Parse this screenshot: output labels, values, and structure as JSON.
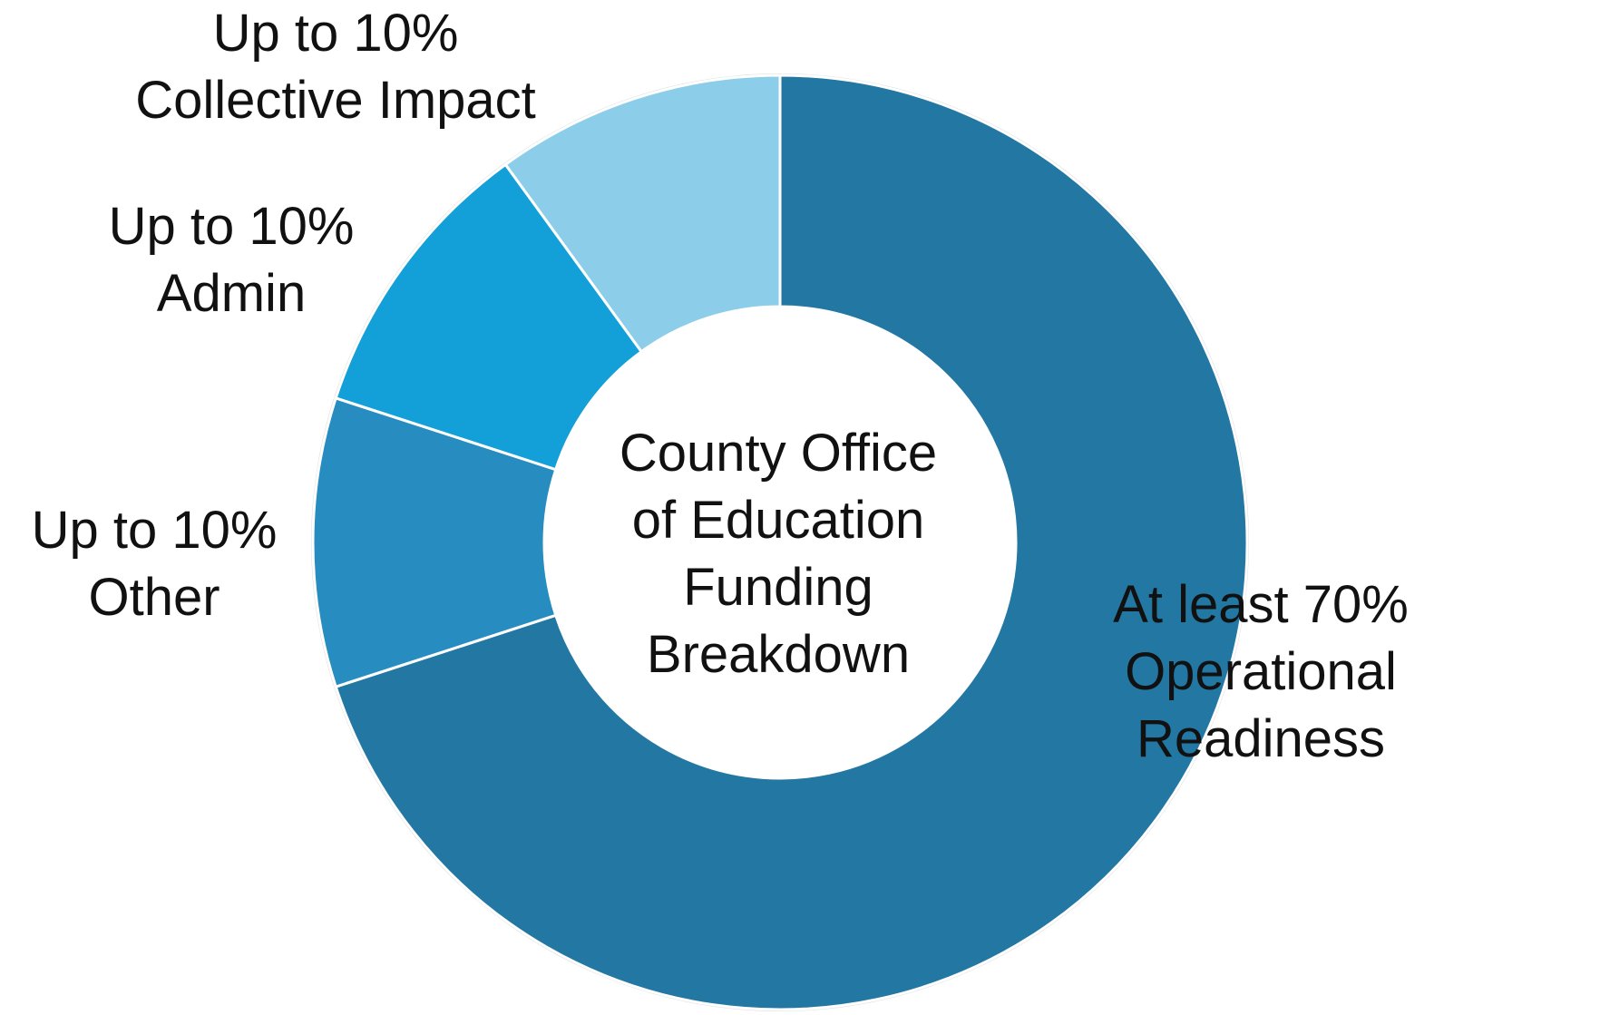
{
  "chart_data": {
    "type": "pie",
    "variant": "donut",
    "title": "County Office of Education Funding Breakdown",
    "title_lines": [
      "County Office",
      "of Education",
      "Funding",
      "Breakdown"
    ],
    "slices": [
      {
        "name": "Operational Readiness",
        "value": 70,
        "label_lines": [
          "At least 70%",
          "Operational",
          "Readiness"
        ],
        "color": "#2277a3"
      },
      {
        "name": "Other",
        "value": 10,
        "label_lines": [
          "Up to 10%",
          "Other"
        ],
        "color": "#278cc0"
      },
      {
        "name": "Admin",
        "value": 10,
        "label_lines": [
          "Up to 10%",
          "Admin"
        ],
        "color": "#139fd7"
      },
      {
        "name": "Collective Impact",
        "value": 10,
        "label_lines": [
          "Up to 10%",
          "Collective Impact"
        ],
        "color": "#8ccde9"
      }
    ],
    "start_angle_deg": 0,
    "direction": "clockwise",
    "legend": "none",
    "slice_border_color": "#ffffff"
  }
}
